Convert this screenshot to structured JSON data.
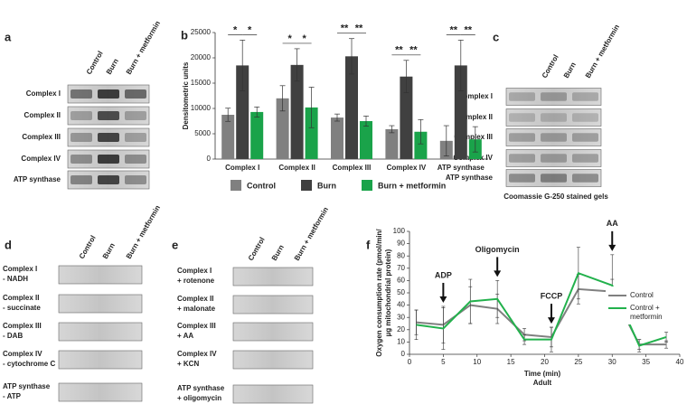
{
  "panels": {
    "a": "a",
    "b": "b",
    "c": "c",
    "d": "d",
    "e": "e",
    "f": "f"
  },
  "gel_a": {
    "columns": [
      "Control",
      "Burn",
      "Burn + metformin"
    ],
    "rows": [
      "Complex I",
      "Complex II",
      "Complex III",
      "Complex IV",
      "ATP synthase"
    ]
  },
  "gel_c": {
    "columns": [
      "Control",
      "Burn",
      "Burn + metformin"
    ],
    "rows": [
      "Complex I",
      "Complex II",
      "Complex III",
      "Complex IV",
      "ATP synthase"
    ],
    "caption": "Coomassie G-250 stained gels"
  },
  "gel_d": {
    "columns": [
      "Control",
      "Burn",
      "Burn + metformin"
    ],
    "rows": [
      [
        "Complex I",
        "- NADH"
      ],
      [
        "Complex II",
        "- succinate"
      ],
      [
        "Complex III",
        "- DAB"
      ],
      [
        "Complex IV",
        "- cytochrome C"
      ],
      [
        "ATP synthase",
        "- ATP"
      ]
    ]
  },
  "gel_e": {
    "columns": [
      "Control",
      "Burn",
      "Burn + metformin"
    ],
    "rows": [
      [
        "Complex I",
        "+ rotenone"
      ],
      [
        "Complex II",
        "+ malonate"
      ],
      [
        "Complex III",
        "+ AA"
      ],
      [
        "Complex IV",
        "+ KCN"
      ],
      [
        "ATP synthase",
        "+ oligomycin"
      ]
    ]
  },
  "chart_data": [
    {
      "type": "bar",
      "y_label": "Densitometric units",
      "categories": [
        "Complex I",
        "Complex II",
        "Complex III",
        "Complex IV",
        "ATP synthase"
      ],
      "series": [
        {
          "name": "Control",
          "color": "#808080",
          "values": [
            8750,
            12000,
            8200,
            5900,
            3600
          ],
          "errors": [
            1300,
            2500,
            700,
            700,
            3000
          ]
        },
        {
          "name": "Burn",
          "color": "#404040",
          "values": [
            18500,
            18600,
            20300,
            16300,
            18500
          ],
          "errors": [
            5000,
            3200,
            3500,
            3200,
            5000
          ]
        },
        {
          "name": "Burn + metformin",
          "color": "#1aa34a",
          "values": [
            9300,
            10200,
            7500,
            5400,
            3900
          ],
          "errors": [
            1000,
            4000,
            1000,
            2400,
            2500
          ]
        }
      ],
      "significance": [
        [
          "*",
          "*"
        ],
        [
          "*",
          "*"
        ],
        [
          "**",
          "**"
        ],
        [
          "**",
          "**"
        ],
        [
          "**",
          "**"
        ]
      ],
      "ylim": [
        0,
        25000
      ],
      "yticks": [
        0,
        5000,
        10000,
        15000,
        20000,
        25000
      ],
      "legend": "bottom"
    },
    {
      "type": "line",
      "y_label": [
        "Oxygen consumption rate (pmol/min/",
        "µg mitochondrial protein)"
      ],
      "x_label": [
        "Time (min)",
        "Adult"
      ],
      "x": [
        1,
        5,
        9,
        13,
        17,
        21,
        25,
        30,
        34,
        38
      ],
      "series": [
        {
          "name": "Control",
          "color": "#808080",
          "values": [
            26,
            24,
            40,
            37,
            16,
            14,
            53,
            51,
            8,
            8
          ],
          "errors": [
            10,
            15,
            15,
            12,
            5,
            8,
            12,
            10,
            4,
            3
          ]
        },
        {
          "name": "Control + metformin",
          "color": "#22b14c",
          "values": [
            24,
            21,
            43,
            45,
            12,
            12,
            66,
            56,
            7,
            14
          ],
          "errors": [
            12,
            17,
            18,
            15,
            4,
            10,
            21,
            25,
            5,
            4
          ]
        }
      ],
      "annotations": [
        {
          "text": "ADP",
          "x": 5
        },
        {
          "text": "Oligomycin",
          "x": 13
        },
        {
          "text": "FCCP",
          "x": 21
        },
        {
          "text": "AA",
          "x": 30
        }
      ],
      "xlim": [
        0,
        40
      ],
      "xticks": [
        0,
        5,
        10,
        15,
        20,
        25,
        30,
        35,
        40
      ],
      "ylim": [
        0,
        100
      ],
      "yticks": [
        0,
        10,
        20,
        30,
        40,
        50,
        60,
        70,
        80,
        90,
        100
      ],
      "legend": "right"
    }
  ]
}
